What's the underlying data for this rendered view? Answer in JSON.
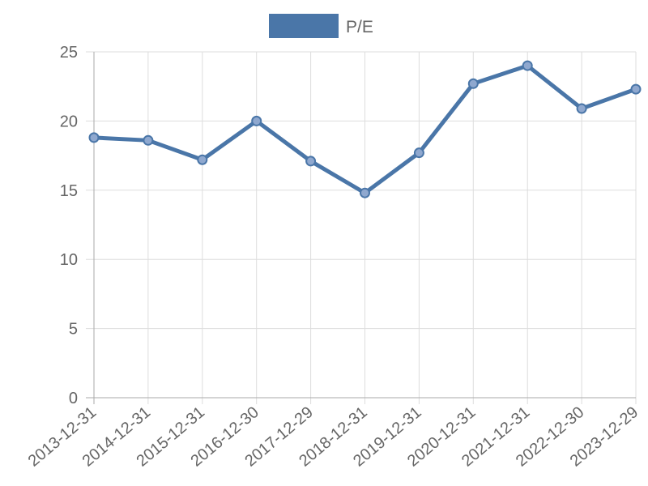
{
  "chart_data": {
    "type": "line",
    "title": "",
    "xlabel": "",
    "ylabel": "",
    "x": [
      "2013-12-31",
      "2014-12-31",
      "2015-12-31",
      "2016-12-30",
      "2017-12-29",
      "2018-12-31",
      "2019-12-31",
      "2020-12-31",
      "2021-12-31",
      "2022-12-30",
      "2023-12-29"
    ],
    "series": [
      {
        "name": "P/E",
        "values": [
          18.8,
          18.6,
          17.2,
          20.0,
          17.1,
          14.8,
          17.7,
          22.7,
          24.0,
          20.9,
          22.3
        ],
        "color": "#4a76a8"
      }
    ],
    "ylim": [
      0,
      25
    ],
    "yticks": [
      0,
      5,
      10,
      15,
      20,
      25
    ],
    "grid": true,
    "legend": "top-center"
  }
}
